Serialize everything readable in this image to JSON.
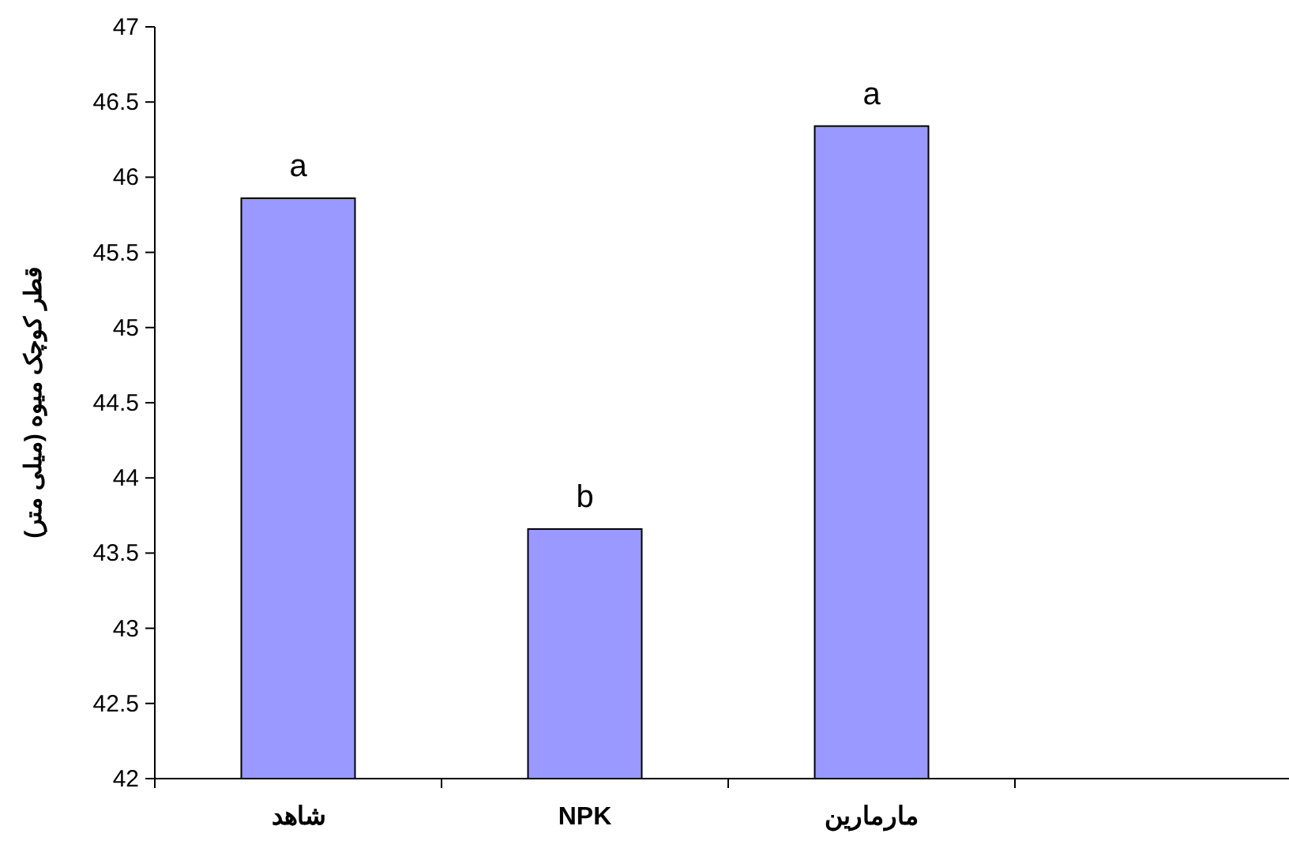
{
  "chart_data": {
    "type": "bar",
    "ylabel": "قطر کوچک میوه (میلی متر)",
    "categories": [
      "شاهد",
      "NPK",
      "مارمارین",
      null
    ],
    "values": [
      45.86,
      43.66,
      46.34,
      null
    ],
    "color": "#9999ff",
    "ylim": [
      42,
      47
    ],
    "yticks": [
      42,
      42.5,
      43,
      43.5,
      44,
      44.5,
      45,
      45.5,
      46,
      46.5,
      47
    ],
    "grid": false,
    "annotations": [
      {
        "text": "a",
        "x": "شاهد",
        "y": 45.86
      },
      {
        "text": "b",
        "x": "NPK",
        "y": 43.66
      },
      {
        "text": "a",
        "x": "مارمارین",
        "y": 46.34
      }
    ]
  }
}
